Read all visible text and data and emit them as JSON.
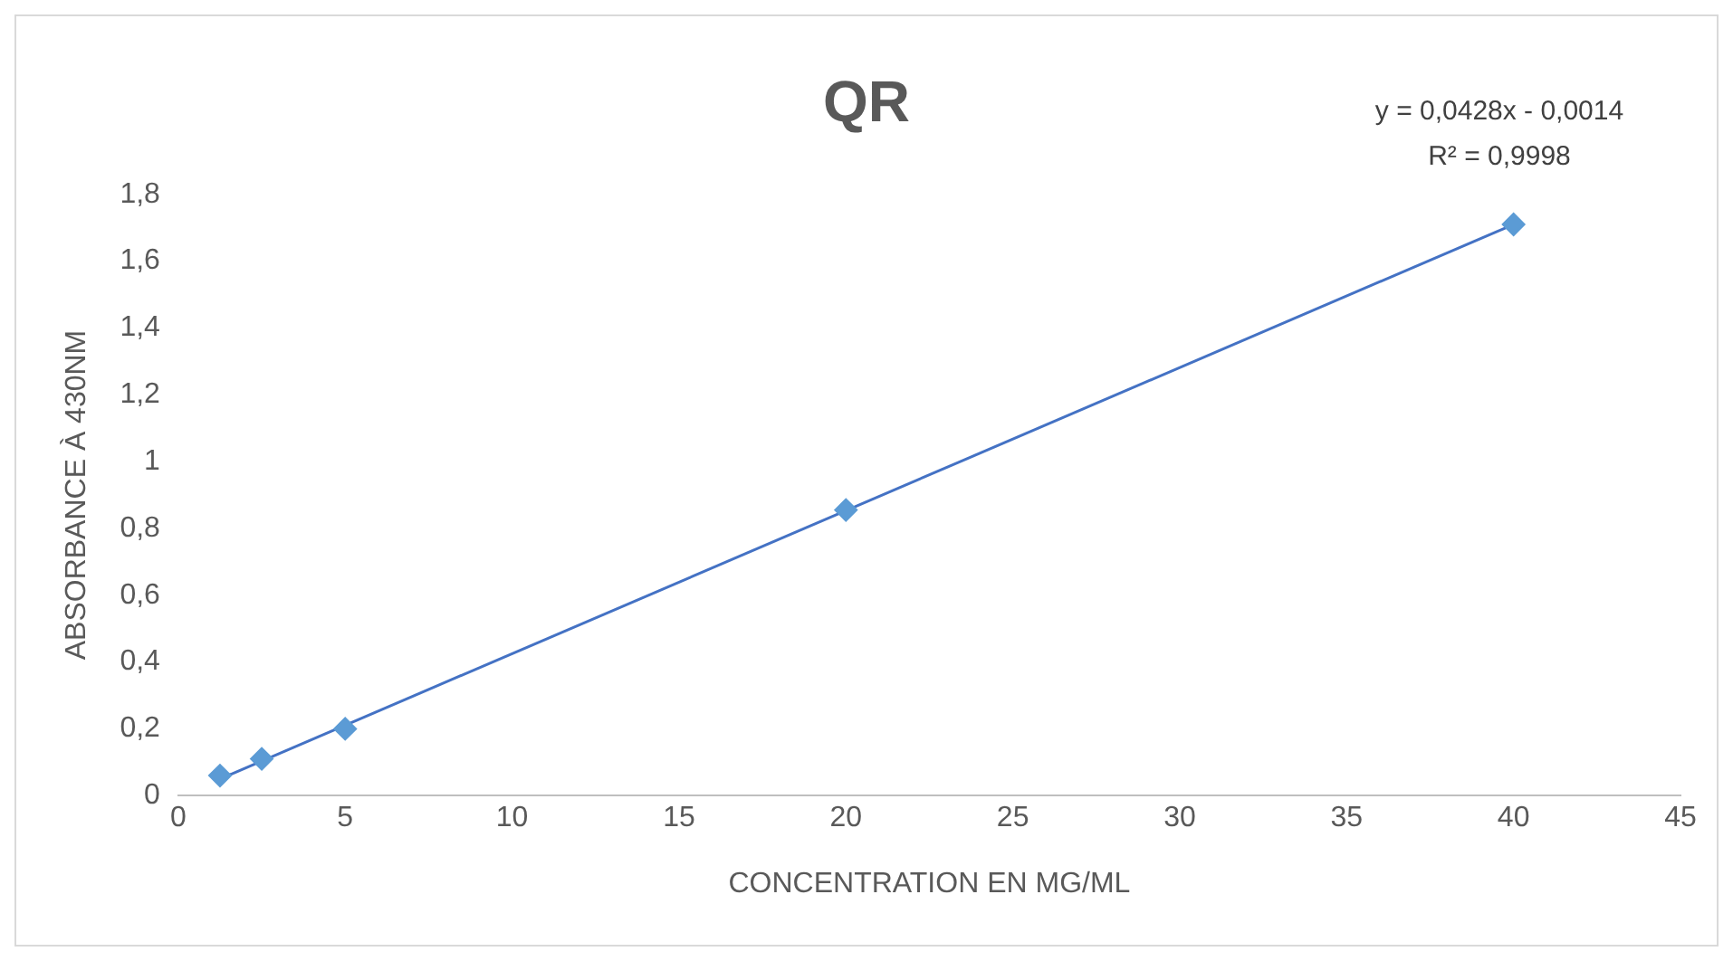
{
  "chart_data": {
    "type": "scatter",
    "title": "QR",
    "xlabel": "CONCENTRATION EN MG/ML",
    "ylabel": "ABSORBANCE À 430NM",
    "annotations": [
      "y = 0,0428x - 0,0014",
      "R² = 0,9998"
    ],
    "xlim": [
      0,
      45
    ],
    "xticks": [
      0,
      5,
      10,
      15,
      20,
      25,
      30,
      35,
      40,
      45
    ],
    "ylim": [
      0,
      1.8
    ],
    "yticks": [
      0,
      {
        "value": 0.2,
        "label": "0,2"
      },
      {
        "value": 0.4,
        "label": "0,4"
      },
      {
        "value": 0.6,
        "label": "0,6"
      },
      {
        "value": 0.8,
        "label": "0,8"
      },
      1,
      {
        "value": 1.2,
        "label": "1,2"
      },
      {
        "value": 1.4,
        "label": "1,4"
      },
      {
        "value": 1.6,
        "label": "1,6"
      },
      {
        "value": 1.8,
        "label": "1,8"
      }
    ],
    "grid": false,
    "marker": "diamond",
    "series": [
      {
        "type": "scatter",
        "color": "#5b9bd5",
        "x": [
          1.25,
          2.5,
          5,
          20,
          40
        ],
        "values": [
          0.06,
          0.11,
          0.2,
          0.855,
          1.71
        ]
      },
      {
        "type": "line",
        "color": "#4472c4",
        "marker": "none",
        "x": [
          1.25,
          40
        ],
        "values": [
          0.05,
          1.71
        ]
      }
    ]
  }
}
